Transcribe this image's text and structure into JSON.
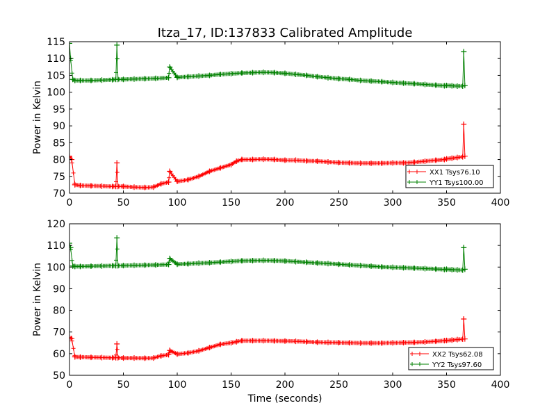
{
  "title": "Itza_17, ID:137833 Calibrated Amplitude",
  "colors": {
    "xx": "#ff0000",
    "yy": "#008000"
  },
  "chart_data": [
    {
      "type": "line",
      "xlabel": "",
      "ylabel": "Power in Kelvin",
      "xlim": [
        0,
        400
      ],
      "ylim": [
        70,
        115
      ],
      "xticks": [
        0,
        50,
        100,
        150,
        200,
        250,
        300,
        350,
        400
      ],
      "yticks": [
        70,
        75,
        80,
        85,
        90,
        95,
        100,
        105,
        110,
        115
      ],
      "legend_position": "lower-right",
      "marker": "plus",
      "series": [
        {
          "name": "XX1 Tsys76.10",
          "color": "#ff0000",
          "x": [
            0,
            2,
            5,
            10,
            20,
            30,
            40,
            43,
            44,
            45,
            50,
            60,
            70,
            78,
            85,
            92,
            93,
            100,
            110,
            120,
            130,
            140,
            150,
            155,
            160,
            170,
            180,
            190,
            200,
            210,
            220,
            230,
            240,
            250,
            260,
            270,
            280,
            290,
            300,
            310,
            320,
            330,
            340,
            348,
            350,
            355,
            360,
            365,
            366,
            367
          ],
          "y": [
            81,
            80,
            72.5,
            72.3,
            72.2,
            72.1,
            72,
            72,
            79,
            72,
            72,
            71.8,
            71.7,
            71.8,
            72.8,
            73.3,
            76.5,
            73.5,
            74,
            75,
            76.5,
            77.5,
            78.5,
            79.5,
            80,
            80,
            80.1,
            80,
            79.8,
            79.8,
            79.6,
            79.5,
            79.3,
            79.1,
            79,
            78.9,
            78.9,
            78.9,
            79,
            79,
            79.2,
            79.5,
            79.8,
            80,
            80.2,
            80.4,
            80.6,
            80.8,
            90.5,
            81
          ]
        },
        {
          "name": "YY1 Tsys100.00",
          "color": "#008000",
          "x": [
            0,
            1,
            3,
            5,
            10,
            20,
            30,
            40,
            43,
            44,
            45,
            50,
            60,
            70,
            80,
            92,
            93,
            100,
            110,
            120,
            130,
            140,
            150,
            160,
            170,
            180,
            190,
            200,
            210,
            220,
            230,
            240,
            250,
            260,
            270,
            280,
            290,
            300,
            310,
            320,
            330,
            340,
            348,
            350,
            355,
            360,
            365,
            366,
            367
          ],
          "y": [
            114.5,
            110,
            103.8,
            103.5,
            103.5,
            103.5,
            103.6,
            103.7,
            103.8,
            114,
            103.8,
            103.8,
            103.9,
            104,
            104.1,
            104.3,
            107.5,
            104.4,
            104.6,
            104.8,
            105,
            105.3,
            105.5,
            105.7,
            105.8,
            105.9,
            105.8,
            105.6,
            105.3,
            105,
            104.6,
            104.3,
            104,
            103.8,
            103.5,
            103.3,
            103.1,
            102.9,
            102.7,
            102.5,
            102.3,
            102.1,
            101.9,
            102,
            101.9,
            101.8,
            101.8,
            112,
            102
          ]
        }
      ]
    },
    {
      "type": "line",
      "xlabel": "Time (seconds)",
      "ylabel": "Power in Kelvin",
      "xlim": [
        0,
        400
      ],
      "ylim": [
        50,
        120
      ],
      "xticks": [
        0,
        50,
        100,
        150,
        200,
        250,
        300,
        350,
        400
      ],
      "yticks": [
        50,
        60,
        70,
        80,
        90,
        100,
        110,
        120
      ],
      "legend_position": "lower-right",
      "marker": "plus",
      "series": [
        {
          "name": "XX2 Tsys62.08",
          "color": "#ff0000",
          "x": [
            0,
            2,
            5,
            10,
            20,
            30,
            40,
            43,
            44,
            45,
            50,
            60,
            70,
            78,
            85,
            92,
            93,
            100,
            110,
            120,
            130,
            140,
            150,
            155,
            160,
            170,
            180,
            190,
            200,
            210,
            220,
            230,
            240,
            250,
            260,
            270,
            280,
            290,
            300,
            310,
            320,
            330,
            340,
            348,
            350,
            355,
            360,
            365,
            366,
            367
          ],
          "y": [
            67.5,
            67,
            58.5,
            58.4,
            58.3,
            58.2,
            58.1,
            58.1,
            64.5,
            58.1,
            58,
            58,
            57.9,
            58,
            59,
            59.5,
            61.5,
            59.8,
            60.3,
            61.3,
            62.8,
            64.3,
            65,
            65.5,
            66,
            66,
            66,
            65.9,
            65.8,
            65.7,
            65.5,
            65.3,
            65.2,
            65.1,
            65,
            64.9,
            64.9,
            64.9,
            65,
            65.1,
            65.2,
            65.4,
            65.7,
            66,
            66.1,
            66.3,
            66.5,
            66.7,
            76,
            66.8
          ]
        },
        {
          "name": "YY2 Tsys97.60",
          "color": "#008000",
          "x": [
            0,
            1,
            3,
            5,
            10,
            20,
            30,
            40,
            43,
            44,
            45,
            50,
            60,
            70,
            80,
            92,
            93,
            100,
            110,
            120,
            130,
            140,
            150,
            160,
            170,
            180,
            190,
            200,
            210,
            220,
            230,
            240,
            250,
            260,
            270,
            280,
            290,
            300,
            310,
            320,
            330,
            340,
            348,
            350,
            355,
            360,
            365,
            366,
            367
          ],
          "y": [
            111,
            109,
            100.5,
            100.3,
            100.3,
            100.4,
            100.5,
            100.6,
            100.6,
            113.5,
            100.6,
            100.7,
            100.8,
            100.9,
            101,
            101.2,
            104,
            101.3,
            101.5,
            101.8,
            102,
            102.3,
            102.6,
            102.9,
            103,
            103.1,
            103,
            102.8,
            102.5,
            102.2,
            101.9,
            101.6,
            101.3,
            101,
            100.7,
            100.4,
            100.1,
            99.9,
            99.7,
            99.5,
            99.3,
            99.1,
            98.9,
            99,
            98.8,
            98.7,
            98.6,
            109,
            99
          ]
        }
      ]
    }
  ]
}
